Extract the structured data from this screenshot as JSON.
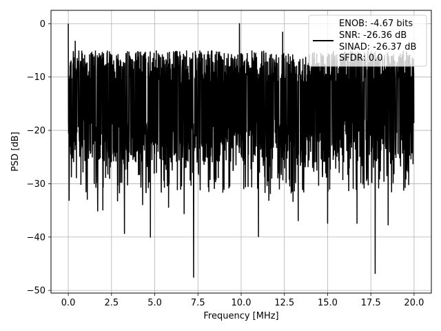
{
  "chart_data": {
    "type": "line",
    "title": "",
    "xlabel": "Frequency [MHz]",
    "ylabel": "PSD [dB]",
    "xlim": [
      -1.0,
      21.0
    ],
    "ylim": [
      -50.5,
      2.5
    ],
    "xticks": [
      0.0,
      2.5,
      5.0,
      7.5,
      10.0,
      12.5,
      15.0,
      17.5,
      20.0
    ],
    "xtick_labels": [
      "0.0",
      "2.5",
      "5.0",
      "7.5",
      "10.0",
      "12.5",
      "15.0",
      "17.5",
      "20.0"
    ],
    "yticks": [
      0,
      -10,
      -20,
      -30,
      -40,
      -50
    ],
    "ytick_labels": [
      "0",
      "−10",
      "−20",
      "−30",
      "−40",
      "−50"
    ],
    "grid": true,
    "legend_placement": "top-right",
    "series": [
      {
        "name": "ENOB: -4.67 bits\nSNR: -26.36 dB\nSINAD: -26.37 dB\nSFDR: 0.0",
        "legend_lines": [
          "ENOB: -4.67 bits",
          "SNR: -26.36 dB",
          "SINAD: -26.37 dB",
          "SFDR: 0.0"
        ],
        "color": "#000000",
        "x_start": 0.0,
        "x_end": 20.0,
        "upper_envelope": -5,
        "lower_envelope": -26,
        "center": -15,
        "notable_points": [
          {
            "x": 0.0,
            "y": 0.0
          },
          {
            "x": 0.05,
            "y": -33.2
          },
          {
            "x": 0.4,
            "y": -3.2
          },
          {
            "x": 1.1,
            "y": -33.0
          },
          {
            "x": 1.7,
            "y": -35.2
          },
          {
            "x": 2.0,
            "y": -35.0
          },
          {
            "x": 2.85,
            "y": -33.3
          },
          {
            "x": 3.25,
            "y": -39.4
          },
          {
            "x": 4.3,
            "y": -34.0
          },
          {
            "x": 4.75,
            "y": -40.1
          },
          {
            "x": 5.8,
            "y": -34.5
          },
          {
            "x": 6.7,
            "y": -35.7
          },
          {
            "x": 7.25,
            "y": -47.6
          },
          {
            "x": 8.2,
            "y": -29.3
          },
          {
            "x": 9.9,
            "y": 0.1
          },
          {
            "x": 10.4,
            "y": -30.6
          },
          {
            "x": 11.0,
            "y": -40.0
          },
          {
            "x": 11.6,
            "y": -33.2
          },
          {
            "x": 12.4,
            "y": -1.5
          },
          {
            "x": 13.0,
            "y": -33.4
          },
          {
            "x": 13.3,
            "y": -37.0
          },
          {
            "x": 15.0,
            "y": -37.5
          },
          {
            "x": 16.7,
            "y": -37.5
          },
          {
            "x": 17.35,
            "y": -30.3
          },
          {
            "x": 17.75,
            "y": -46.9
          },
          {
            "x": 18.5,
            "y": -37.8
          },
          {
            "x": 19.4,
            "y": -31.3
          }
        ]
      }
    ]
  }
}
